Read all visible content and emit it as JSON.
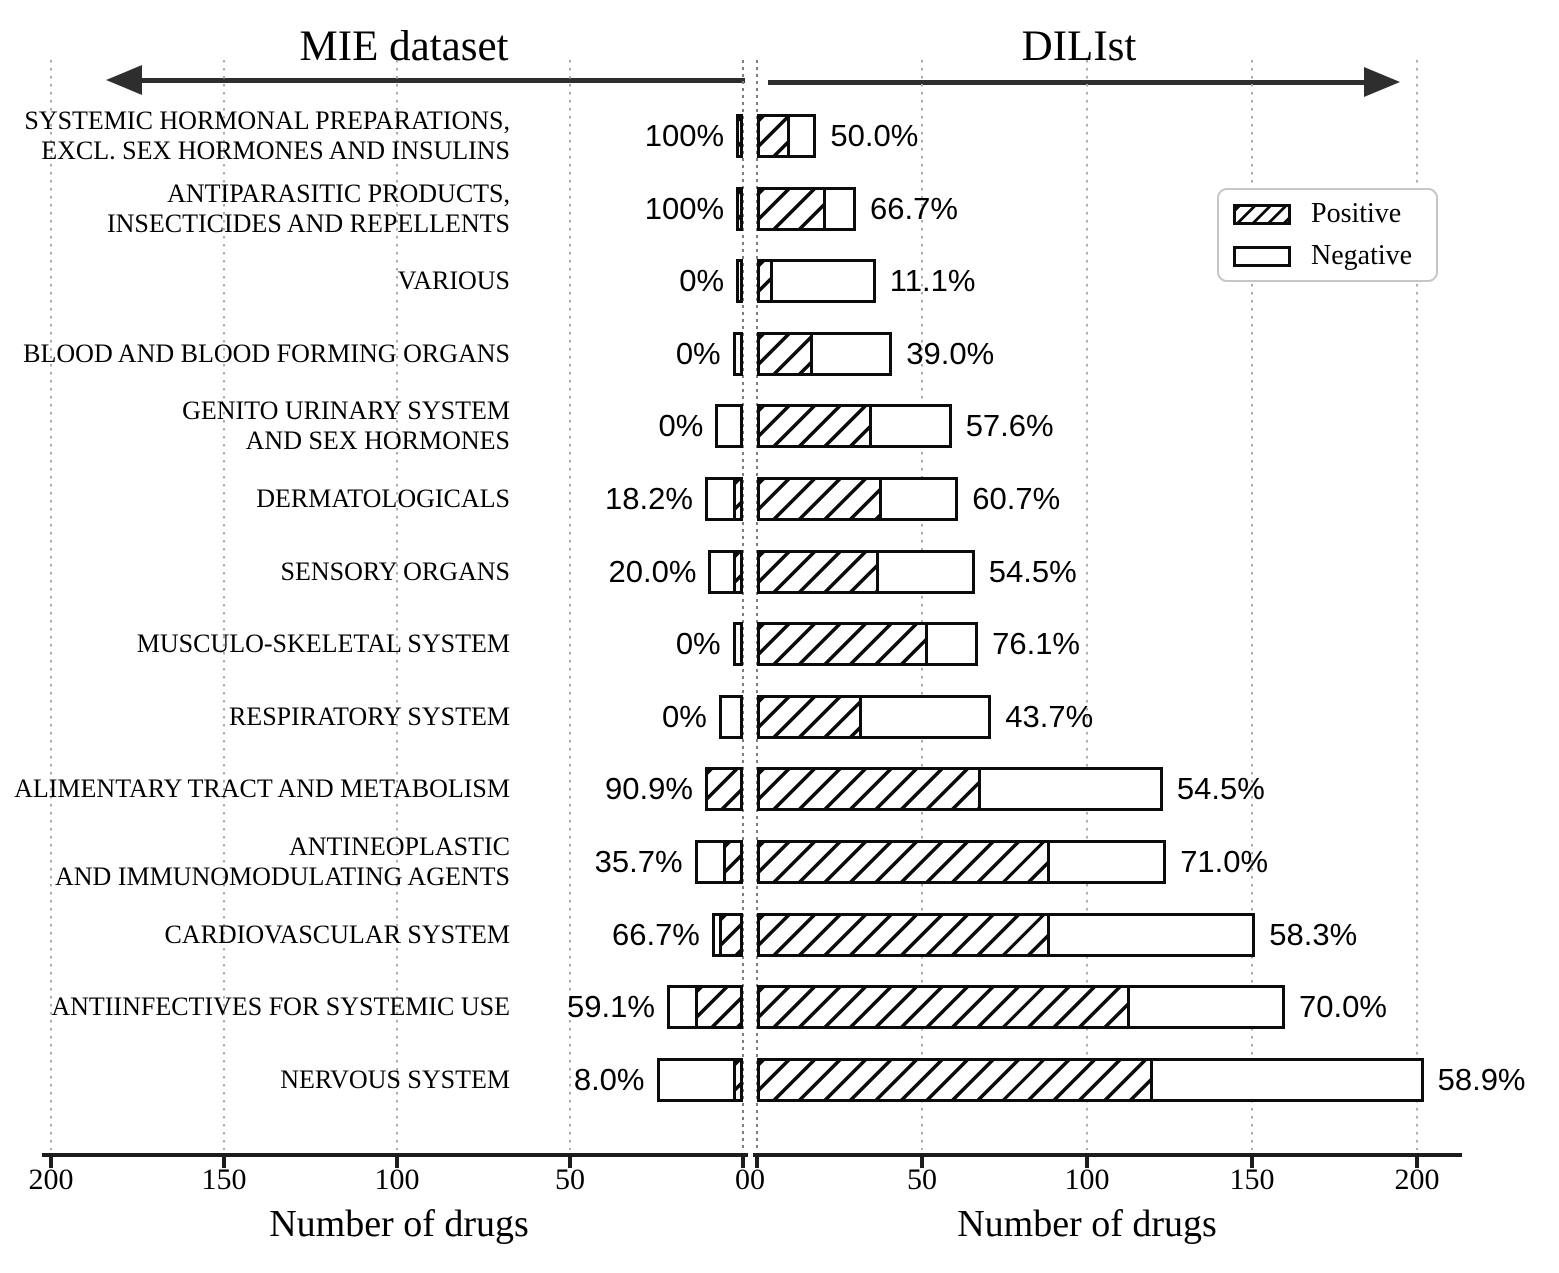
{
  "titles": {
    "left": "MIE dataset",
    "right": "DILIst"
  },
  "legend": {
    "items": [
      {
        "label": "Positive",
        "style": "hatched"
      },
      {
        "label": "Negative",
        "style": "plain"
      }
    ]
  },
  "axis": {
    "xlabel_left": "Number of drugs",
    "xlabel_right": "Number of drugs",
    "left_ticks": [
      200,
      150,
      100,
      50
    ],
    "right_ticks": [
      50,
      100,
      150,
      200
    ],
    "zero_label": "00"
  },
  "colors": {
    "bar_border": "#0b0b0b",
    "hatch": "#0b0b0b",
    "gridline": "#ababab",
    "text": "#000000"
  },
  "chart_data": {
    "type": "bar",
    "orientation": "horizontal-diverging",
    "left_axis": {
      "name": "MIE dataset",
      "range": [
        0,
        200
      ],
      "direction": "right-to-left"
    },
    "right_axis": {
      "name": "DILIst",
      "range": [
        0,
        200
      ],
      "direction": "left-to-right"
    },
    "value_unit": "Number of drugs",
    "segments": [
      "Positive (hatched)",
      "Negative (plain)"
    ],
    "rows": [
      {
        "category_lines": [
          "SYSTEMIC HORMONAL PREPARATIONS,",
          "EXCL. SEX HORMONES AND INSULINS"
        ],
        "mie": {
          "total": 2,
          "positive": 2,
          "pct": "100%"
        },
        "dilist": {
          "total": 18,
          "positive": 9,
          "pct": "50.0%"
        }
      },
      {
        "category_lines": [
          "ANTIPARASITIC PRODUCTS,",
          "INSECTICIDES AND REPELLENTS"
        ],
        "mie": {
          "total": 2,
          "positive": 2,
          "pct": "100%"
        },
        "dilist": {
          "total": 30,
          "positive": 20,
          "pct": "66.7%"
        }
      },
      {
        "category_lines": [
          "VARIOUS"
        ],
        "mie": {
          "total": 2,
          "positive": 0,
          "pct": "0%"
        },
        "dilist": {
          "total": 36,
          "positive": 4,
          "pct": "11.1%"
        }
      },
      {
        "category_lines": [
          "BLOOD AND BLOOD FORMING ORGANS"
        ],
        "mie": {
          "total": 3,
          "positive": 0,
          "pct": "0%"
        },
        "dilist": {
          "total": 41,
          "positive": 16,
          "pct": "39.0%"
        }
      },
      {
        "category_lines": [
          "GENITO URINARY SYSTEM",
          "AND SEX HORMONES"
        ],
        "mie": {
          "total": 8,
          "positive": 0,
          "pct": "0%"
        },
        "dilist": {
          "total": 59,
          "positive": 34,
          "pct": "57.6%"
        }
      },
      {
        "category_lines": [
          "DERMATOLOGICALS"
        ],
        "mie": {
          "total": 11,
          "positive": 2,
          "pct": "18.2%"
        },
        "dilist": {
          "total": 61,
          "positive": 37,
          "pct": "60.7%"
        }
      },
      {
        "category_lines": [
          "SENSORY ORGANS"
        ],
        "mie": {
          "total": 10,
          "positive": 2,
          "pct": "20.0%"
        },
        "dilist": {
          "total": 66,
          "positive": 36,
          "pct": "54.5%"
        }
      },
      {
        "category_lines": [
          "MUSCULO-SKELETAL SYSTEM"
        ],
        "mie": {
          "total": 3,
          "positive": 0,
          "pct": "0%"
        },
        "dilist": {
          "total": 67,
          "positive": 51,
          "pct": "76.1%"
        }
      },
      {
        "category_lines": [
          "RESPIRATORY SYSTEM"
        ],
        "mie": {
          "total": 7,
          "positive": 0,
          "pct": "0%"
        },
        "dilist": {
          "total": 71,
          "positive": 31,
          "pct": "43.7%"
        }
      },
      {
        "category_lines": [
          "ALIMENTARY TRACT AND METABOLISM"
        ],
        "mie": {
          "total": 11,
          "positive": 10,
          "pct": "90.9%"
        },
        "dilist": {
          "total": 123,
          "positive": 67,
          "pct": "54.5%"
        }
      },
      {
        "category_lines": [
          "ANTINEOPLASTIC",
          "AND IMMUNOMODULATING AGENTS"
        ],
        "mie": {
          "total": 14,
          "positive": 5,
          "pct": "35.7%"
        },
        "dilist": {
          "total": 124,
          "positive": 88,
          "pct": "71.0%"
        }
      },
      {
        "category_lines": [
          "CARDIOVASCULAR SYSTEM"
        ],
        "mie": {
          "total": 9,
          "positive": 6,
          "pct": "66.7%"
        },
        "dilist": {
          "total": 151,
          "positive": 88,
          "pct": "58.3%"
        }
      },
      {
        "category_lines": [
          "ANTIINFECTIVES FOR SYSTEMIC USE"
        ],
        "mie": {
          "total": 22,
          "positive": 13,
          "pct": "59.1%"
        },
        "dilist": {
          "total": 160,
          "positive": 112,
          "pct": "70.0%"
        }
      },
      {
        "category_lines": [
          "NERVOUS SYSTEM"
        ],
        "mie": {
          "total": 25,
          "positive": 2,
          "pct": "8.0%"
        },
        "dilist": {
          "total": 202,
          "positive": 119,
          "pct": "58.9%"
        }
      }
    ]
  }
}
